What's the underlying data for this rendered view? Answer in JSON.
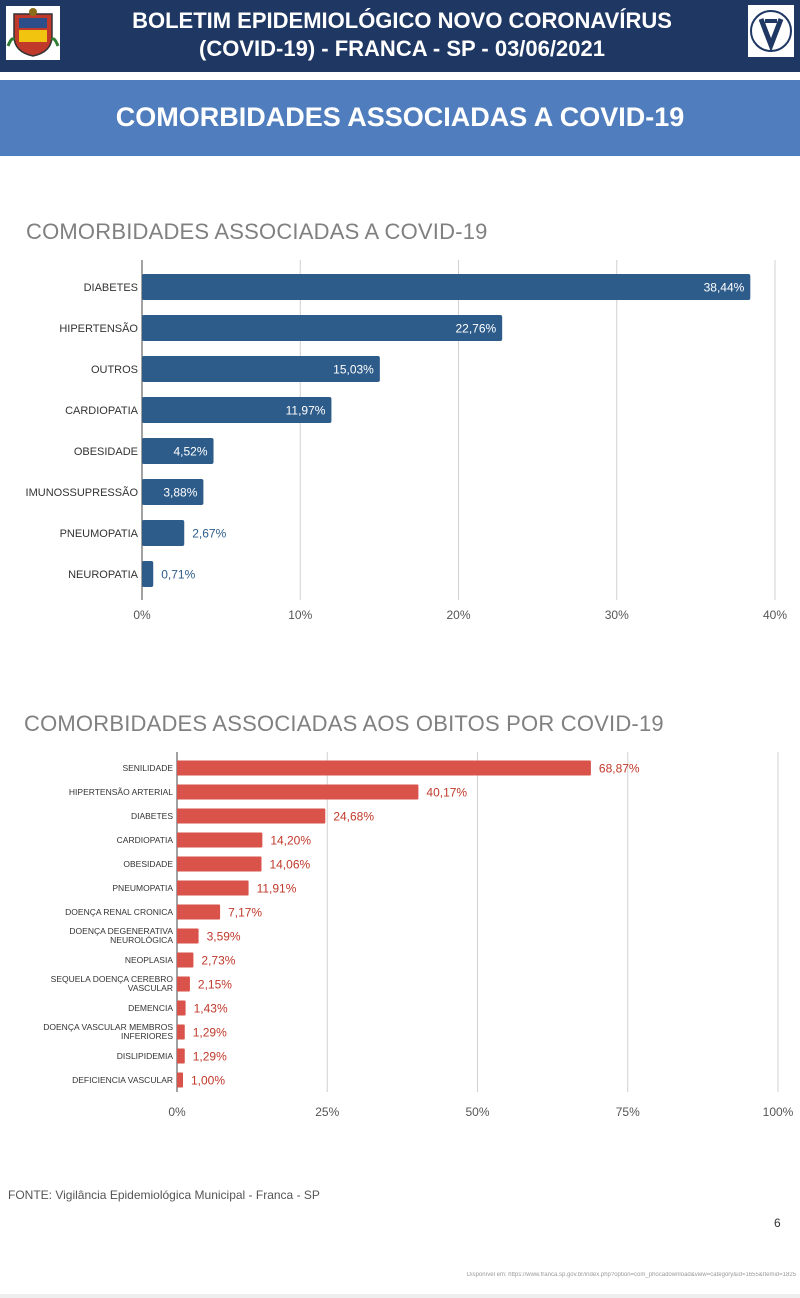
{
  "header": {
    "line1": "BOLETIM EPIDEMIOLÓGICO NOVO CORONAVÍRUS",
    "line2": "(COVID-19) - FRANCA - SP - 03/06/2021",
    "logo_left": "city-coat-of-arms",
    "logo_right": "vigilancia-epidemiologica-logo"
  },
  "banner": {
    "title": "COMORBIDADES ASSOCIADAS A COVID-19"
  },
  "colors": {
    "header_bg": "#1f3763",
    "banner_bg": "#4f7dbd",
    "chart1_bar": "#2e5c8a",
    "chart2_bar": "#d9534a"
  },
  "chart_data": [
    {
      "type": "bar",
      "orientation": "horizontal",
      "title": "COMORBIDADES ASSOCIADAS A COVID-19",
      "categories": [
        "DIABETES",
        "HIPERTENSÃO",
        "OUTROS",
        "CARDIOPATIA",
        "OBESIDADE",
        "IMUNOSSUPRESSÃO",
        "PNEUMOPATIA",
        "NEUROPATIA"
      ],
      "values": [
        38.44,
        22.76,
        15.03,
        11.97,
        4.52,
        3.88,
        2.67,
        0.71
      ],
      "data_labels": [
        "38,44%",
        "22,76%",
        "15,03%",
        "11,97%",
        "4,52%",
        "3,88%",
        "2,67%",
        "0,71%"
      ],
      "xlim": [
        0,
        40
      ],
      "x_ticks": [
        0,
        10,
        20,
        30,
        40
      ],
      "x_tick_labels": [
        "0%",
        "10%",
        "20%",
        "30%",
        "40%"
      ],
      "grid": true,
      "color": "#2e5c8a"
    },
    {
      "type": "bar",
      "orientation": "horizontal",
      "title": "COMORBIDADES ASSOCIADAS AOS OBITOS POR COVID-19",
      "categories": [
        "SENILIDADE",
        "HIPERTENSÃO ARTERIAL",
        "DIABETES",
        "CARDIOPATIA",
        "OBESIDADE",
        "PNEUMOPATIA",
        "DOENÇA RENAL CRONICA",
        "DOENÇA DEGENERATIVA NEUROLÓGICA",
        "NEOPLASIA",
        "SEQUELA DOENÇA CEREBRO VASCULAR",
        "DEMENCIA",
        "DOENÇA VASCULAR MEMBROS INFERIORES",
        "DISLIPIDEMIA",
        "DEFICIENCIA VASCULAR"
      ],
      "values": [
        68.87,
        40.17,
        24.68,
        14.2,
        14.06,
        11.91,
        7.17,
        3.59,
        2.73,
        2.15,
        1.43,
        1.29,
        1.29,
        1.0
      ],
      "data_labels": [
        "68,87%",
        "40,17%",
        "24,68%",
        "14,20%",
        "14,06%",
        "11,91%",
        "7,17%",
        "3,59%",
        "2,73%",
        "2,15%",
        "1,43%",
        "1,29%",
        "1,29%",
        "1,00%"
      ],
      "xlim": [
        0,
        100
      ],
      "x_ticks": [
        0,
        25,
        50,
        75,
        100
      ],
      "x_tick_labels": [
        "0%",
        "25%",
        "50%",
        "75%",
        "100%"
      ],
      "grid": true,
      "color": "#d9534a"
    }
  ],
  "footer": {
    "source": "FONTE: Vigilância Epidemiológica Municipal - Franca - SP",
    "page_number": "6",
    "url_note": "Disponível em: https://www.franca.sp.gov.br/index.php?option=com_phocadownload&view=category&id=1655&Itemid=1825"
  }
}
